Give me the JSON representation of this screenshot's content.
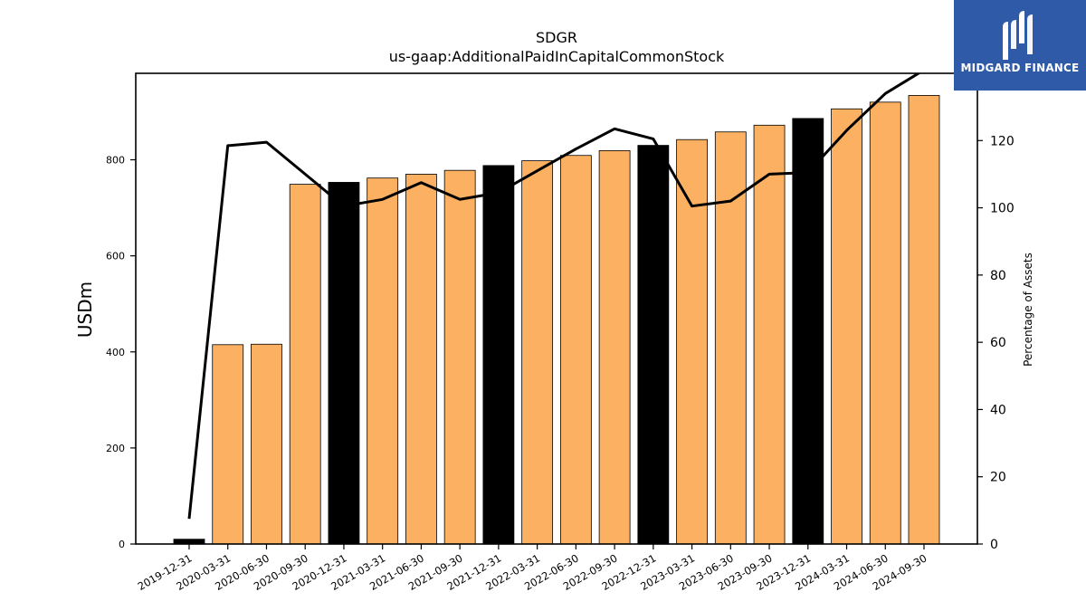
{
  "chart_data": {
    "type": "bar",
    "title": "SDGR",
    "subtitle": "us-gaap:AdditionalPaidInCapitalCommonStock",
    "ylabel": "USDm",
    "y2label": "Percentage of Assets",
    "ylim": [
      0,
      980
    ],
    "y2lim": [
      0,
      140
    ],
    "yticks": [
      0,
      200,
      400,
      600,
      800
    ],
    "y2ticks": [
      0,
      20,
      40,
      60,
      80,
      100,
      120
    ],
    "grid": false,
    "categories": [
      "2019-12-31",
      "2020-03-31",
      "2020-06-30",
      "2020-09-30",
      "2020-12-31",
      "2021-03-31",
      "2021-06-30",
      "2021-09-30",
      "2021-12-31",
      "2022-03-31",
      "2022-06-30",
      "2022-09-30",
      "2022-12-31",
      "2023-03-31",
      "2023-06-30",
      "2023-09-30",
      "2023-12-31",
      "2024-03-31",
      "2024-06-30",
      "2024-09-30"
    ],
    "series": [
      {
        "kind": "bar",
        "axis": "left",
        "values": [
          10,
          415,
          416,
          749,
          753,
          762,
          770,
          778,
          788,
          798,
          809,
          819,
          830,
          842,
          858,
          872,
          886,
          906,
          920,
          934
        ],
        "colors": [
          "#000000",
          "#fbb161",
          "#fbb161",
          "#fbb161",
          "#000000",
          "#fbb161",
          "#fbb161",
          "#fbb161",
          "#000000",
          "#fbb161",
          "#fbb161",
          "#fbb161",
          "#000000",
          "#fbb161",
          "#fbb161",
          "#fbb161",
          "#000000",
          "#fbb161",
          "#fbb161",
          "#fbb161"
        ]
      },
      {
        "kind": "line",
        "axis": "right",
        "color": "#000000",
        "values": [
          7.5,
          118.5,
          119.5,
          110,
          100.5,
          102.5,
          107.5,
          102.5,
          104.5,
          111,
          117.5,
          123.5,
          120.5,
          100.5,
          102,
          110,
          110.5,
          123,
          134,
          141
        ]
      }
    ]
  },
  "logo": {
    "text": "MIDGARD FINANCE",
    "color": "#2f5aa7"
  }
}
